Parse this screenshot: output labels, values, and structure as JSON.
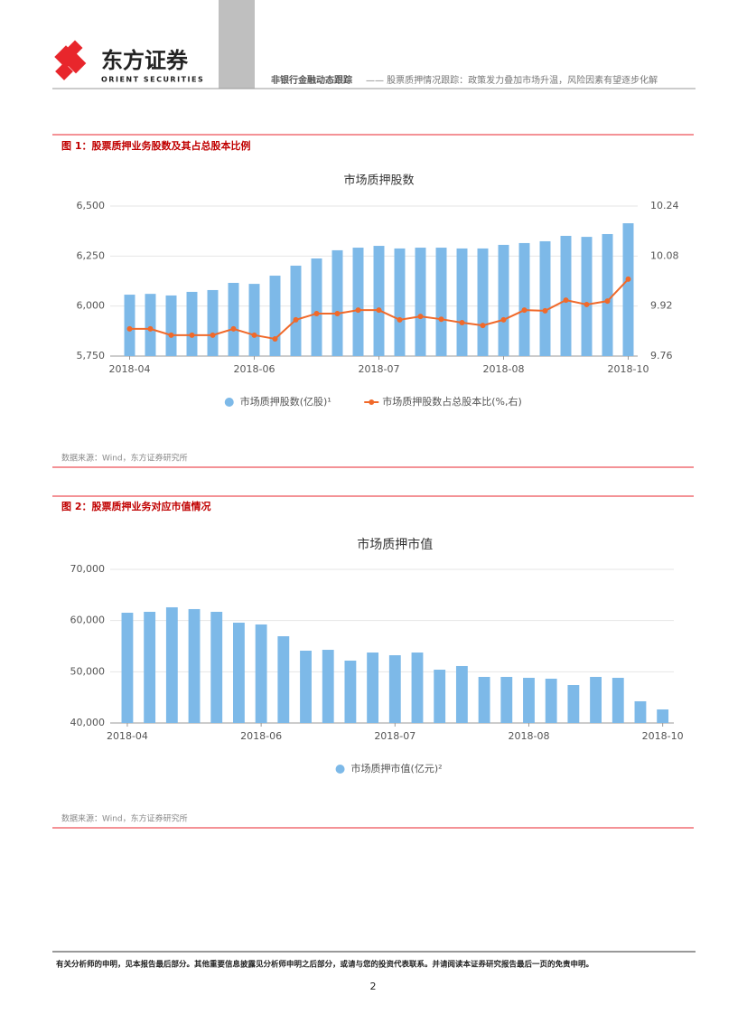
{
  "header": {
    "logo_cn": "东方证券",
    "logo_en": "ORIENT SECURITIES",
    "report_type": "非银行金融动态跟踪",
    "report_title": "—— 股票质押情况跟踪：政策发力叠加市场升温，风险因素有望逐步化解"
  },
  "figures": [
    {
      "caption": "图 1：股票质押业务股数及其占总股本比例",
      "source": "数据来源：Wind，东方证券研究所"
    },
    {
      "caption": "图 2：股票质押业务对应市值情况",
      "source": "数据来源：Wind，东方证券研究所"
    }
  ],
  "chart_data": [
    {
      "type": "bar",
      "title": "市场质押股数",
      "categories": [
        "2018-04",
        null,
        null,
        null,
        null,
        null,
        "2018-06",
        null,
        null,
        null,
        null,
        null,
        "2018-07",
        null,
        null,
        null,
        null,
        null,
        "2018-08",
        null,
        null,
        null,
        null,
        null,
        "2018-10"
      ],
      "series": [
        {
          "name": "市场质押股数(亿股)¹",
          "color": "#7db9e8",
          "values": [
            6057,
            6061,
            6053,
            6071,
            6080,
            6116,
            6111,
            6152,
            6202,
            6238,
            6279,
            6292,
            6301,
            6288,
            6292,
            6292,
            6288,
            6288,
            6306,
            6315,
            6324,
            6351,
            6346,
            6360,
            6414
          ]
        },
        {
          "name": "市场质押股数占总股本比(%,右)",
          "color": "#f0692a",
          "type": "line",
          "axis": "y2",
          "values": [
            9.847,
            9.847,
            9.827,
            9.827,
            9.827,
            9.847,
            9.827,
            9.815,
            9.876,
            9.896,
            9.896,
            9.907,
            9.907,
            9.876,
            9.887,
            9.878,
            9.867,
            9.858,
            9.876,
            9.907,
            9.905,
            9.939,
            9.925,
            9.936,
            10.006
          ]
        }
      ],
      "ylim": [
        5750,
        6500
      ],
      "yticks": [
        {
          "value": 5750,
          "label": "5,750"
        },
        {
          "value": 6000,
          "label": "6,000"
        },
        {
          "value": 6250,
          "label": "6,250"
        },
        {
          "value": 6500,
          "label": "6,500"
        }
      ],
      "y2lim": [
        9.76,
        10.24
      ],
      "y2ticks": [
        9.76,
        9.92,
        10.08,
        10.24
      ],
      "grid": true
    },
    {
      "type": "bar",
      "title": "市场质押市值",
      "categories": [
        "2018-04",
        null,
        null,
        null,
        null,
        null,
        "2018-06",
        null,
        null,
        null,
        null,
        null,
        "2018-07",
        null,
        null,
        null,
        null,
        null,
        "2018-08",
        null,
        null,
        null,
        null,
        null,
        "2018-10"
      ],
      "series": [
        {
          "name": "市场质押市值(亿元)²",
          "color": "#7db9e8",
          "values": [
            61530,
            61710,
            62590,
            62240,
            61710,
            59590,
            59240,
            56940,
            54120,
            54290,
            52180,
            53760,
            53230,
            53760,
            50410,
            51120,
            49000,
            49000,
            48820,
            48650,
            47410,
            49000,
            48820,
            44240,
            42650
          ]
        }
      ],
      "ylim": [
        40000,
        70000
      ],
      "yticks": [
        {
          "value": 40000,
          "label": "40,000"
        },
        {
          "value": 50000,
          "label": "50,000"
        },
        {
          "value": 60000,
          "label": "60,000"
        },
        {
          "value": 70000,
          "label": "70,000"
        }
      ],
      "grid": true
    }
  ],
  "footer": {
    "disclaimer": "有关分析师的申明，见本报告最后部分。其他重要信息披露见分析师申明之后部分，或请与您的投资代表联系。并请阅读本证券研究报告最后一页的免责申明。",
    "page": "2"
  }
}
